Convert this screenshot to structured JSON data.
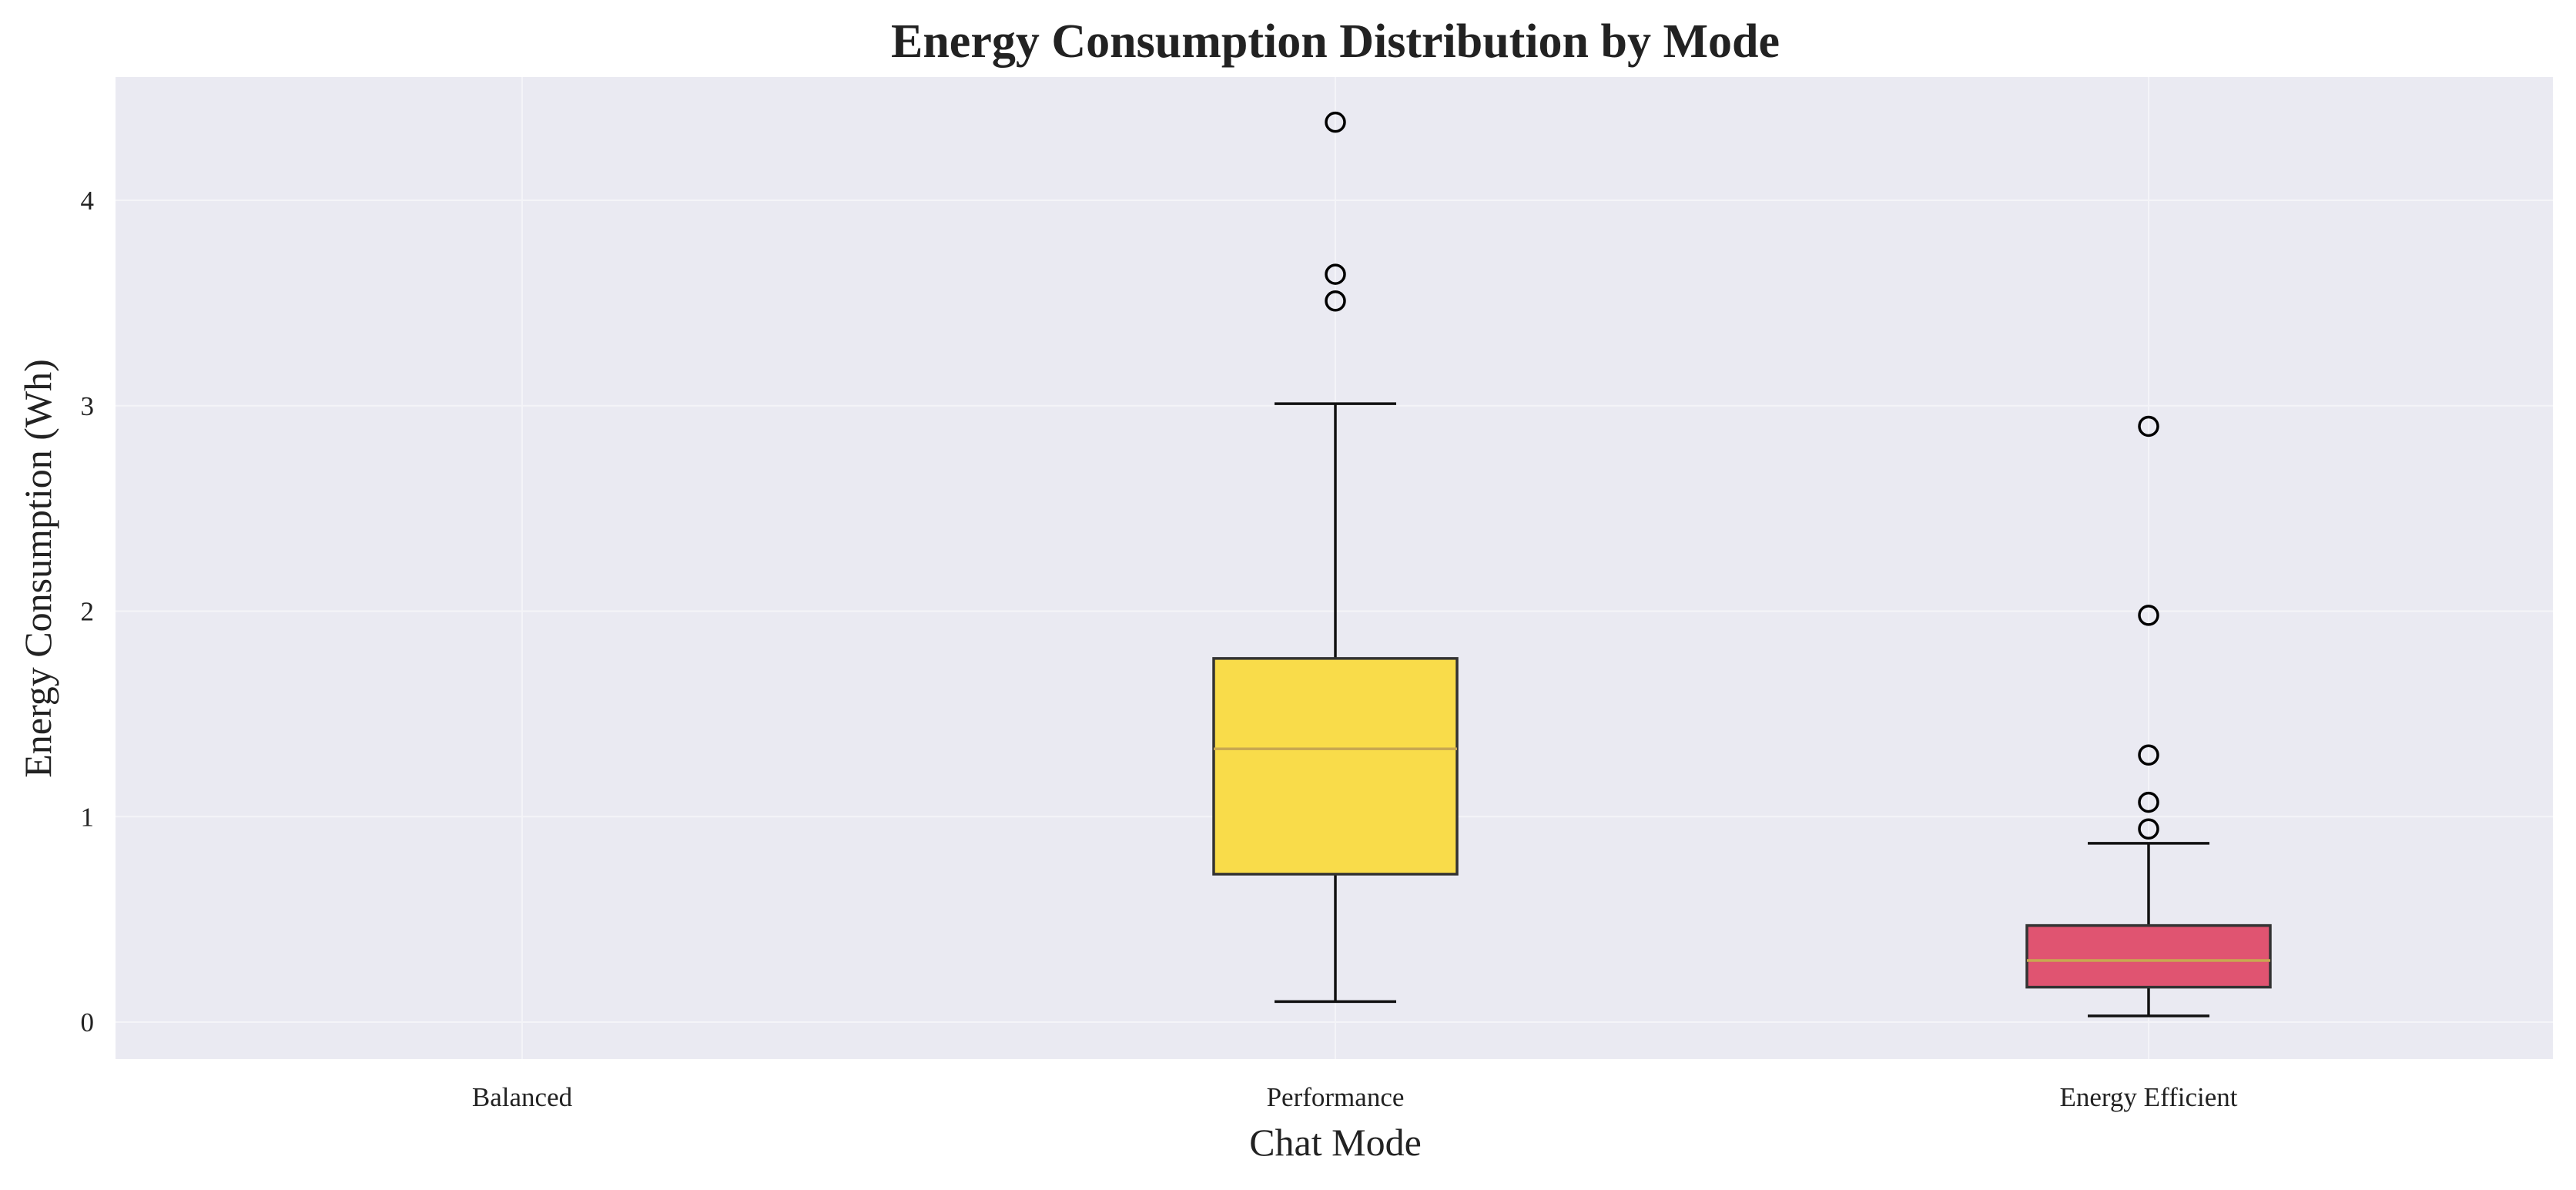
{
  "chart_data": {
    "type": "box",
    "title": "Energy Consumption Distribution by Mode",
    "xlabel": "Chat Mode",
    "ylabel": "Energy Consumption (Wh)",
    "categories": [
      "Balanced",
      "Performance",
      "Energy Efficient"
    ],
    "ylim": [
      -0.18,
      4.6
    ],
    "yticks": [
      0,
      1,
      2,
      3,
      4
    ],
    "grid": true,
    "colors": {
      "plot_background": "#EAEAF2",
      "grid": "#F4F4F8",
      "box_edge": "#333333",
      "median": "#C8A850",
      "whisker": "#111111"
    },
    "boxes": [
      {
        "category": "Balanced",
        "empty": true
      },
      {
        "category": "Performance",
        "q1": 0.72,
        "median": 1.33,
        "q3": 1.77,
        "whisker_low": 0.1,
        "whisker_high": 3.01,
        "outliers": [
          3.51,
          3.64,
          4.38
        ],
        "color": "#F9DC4A"
      },
      {
        "category": "Energy Efficient",
        "q1": 0.17,
        "median": 0.3,
        "q3": 0.47,
        "whisker_low": 0.03,
        "whisker_high": 0.87,
        "outliers": [
          0.94,
          1.07,
          1.3,
          1.98,
          2.9
        ],
        "color": "#E05471"
      }
    ]
  }
}
